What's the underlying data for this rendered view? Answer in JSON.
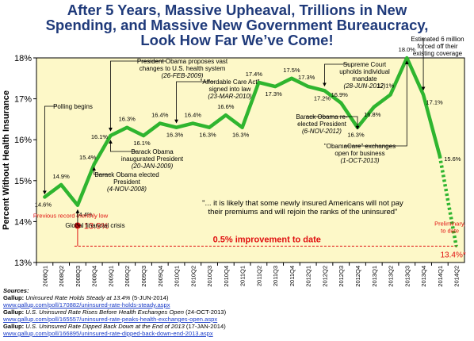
{
  "title_lines": [
    "After 5 Years, Massive Upheaval, Trillions in New",
    "Spending, and Massive New Government Bureaucracy,",
    "Look How Far We’ve Come!"
  ],
  "colors": {
    "title": "#1f3a7a",
    "line": "#2fb52f",
    "plot_background": "#fdf8c8",
    "accent_red": "#e01010",
    "link": "#1a3cc8"
  },
  "chart_data": {
    "type": "line",
    "ylabel": "Percent Without Health Insurance",
    "ylim": [
      13,
      18
    ],
    "yticks": [
      {
        "value": 13,
        "label": "13%"
      },
      {
        "value": 14,
        "label": "14%"
      },
      {
        "value": 15,
        "label": "15%"
      },
      {
        "value": 16,
        "label": "16%"
      },
      {
        "value": 17,
        "label": "17%"
      },
      {
        "value": 18,
        "label": "18%"
      }
    ],
    "categories": [
      "2008Q1",
      "2008Q2",
      "2008Q3",
      "2008Q4",
      "2009Q1",
      "2009Q2",
      "2009Q3",
      "2009Q4",
      "2010Q1",
      "2010Q2",
      "2010Q3",
      "2010Q4",
      "2011Q1",
      "2011Q2",
      "2011Q3",
      "2011Q4",
      "2012Q1",
      "2012Q2",
      "2012Q3",
      "2012Q4",
      "2013Q1",
      "2013Q2",
      "2013Q3",
      "2013Q4",
      "2014Q1",
      "2014Q2"
    ],
    "values": [
      14.6,
      14.9,
      14.4,
      15.4,
      16.1,
      16.3,
      16.1,
      16.4,
      16.3,
      16.4,
      16.3,
      16.6,
      16.3,
      17.4,
      17.3,
      17.5,
      17.3,
      17.2,
      16.9,
      16.3,
      16.8,
      17.1,
      18.0,
      17.1,
      15.6,
      13.4
    ],
    "value_labels": [
      "14.6%",
      "14.9%",
      "14.4%",
      "15.4%",
      "16.1%",
      "16.3%",
      "16.1%",
      "16.4%",
      "16.3%",
      "16.4%",
      "16.3%",
      "16.6%",
      "16.3%",
      "17.4%",
      "17.3%",
      "17.5%",
      "17.3%",
      "17.2%",
      "16.9%",
      "16.3%",
      "16.8%",
      "17.1%",
      "18.0%",
      "17.1%",
      "15.6%",
      "13.4%*"
    ],
    "dashed_from_index": 24,
    "grid": false,
    "reference": {
      "value": 13.9,
      "label": "13.9%",
      "caption": "Previous record monthly low",
      "at_index": 2
    },
    "improvement_label": "0.5% improvement to date",
    "preliminary_label": "Preliminary, to date",
    "annotations": [
      {
        "lines": [
          "Polling begins"
        ],
        "at_index": 0
      },
      {
        "lines": [
          "Global financial crisis"
        ],
        "at_index": 2
      },
      {
        "lines": [
          "Barack Obama elected",
          "President",
          "(4-NOV-2008)"
        ],
        "at_index": 3
      },
      {
        "lines": [
          "Barack Obama",
          "inaugurated President",
          "(20-JAN-2009)"
        ],
        "at_index": 4
      },
      {
        "lines": [
          "President Obama proposes vast",
          "changes to U.S. health system",
          "(26-FEB-2009)"
        ],
        "at_index": 4
      },
      {
        "lines": [
          "\"Affordable Care Act\"",
          "signed into law",
          "(23-MAR-2010)"
        ],
        "at_index": 8
      },
      {
        "lines": [
          "Supreme Court",
          "upholds individual",
          "mandate",
          "(28-JUN-2012)"
        ],
        "at_index": 17
      },
      {
        "lines": [
          "Barack Obama re-",
          "elected President",
          "(6-NOV-2012)"
        ],
        "at_index": 19
      },
      {
        "lines": [
          "\"ObamaCare\" exchanges",
          "open for business",
          "(1-OCT-2013)"
        ],
        "at_index": 22
      },
      {
        "lines": [
          "Estimated 6 million",
          "forced off their",
          "existing coverage"
        ],
        "at_index": 23
      }
    ],
    "quote": [
      "\"... it is likely that some newly insured Americans will not pay",
      "their premiums and will rejoin the ranks of the uninsured\""
    ]
  },
  "sources": {
    "header": "Sources:",
    "items": [
      {
        "publisher": "Gallup:",
        "title": "Uninsured Rate Holds Steady at 13.4%",
        "date": "(5-JUN-2014)",
        "url": "www.gallup.com/poll/170882/uninsured-rate-holds-steady.aspx"
      },
      {
        "publisher": "Gallup:",
        "title": "U.S. Uninsured Rate Rises Before Health Exchanges Open",
        "date": "(24-OCT-2013)",
        "url": "www.gallup.com/poll/165557/uninsured-rate-peaks-health-exchanges-open.aspx"
      },
      {
        "publisher": "Gallup:",
        "title": "U.S. Uninsured Rate Dipped Back Down at the End of 2013",
        "date": "(17-JAN-2014)",
        "url": "www.gallup.com/poll/166895/uninsured-rate-dipped-back-down-end-2013.aspx"
      }
    ]
  }
}
